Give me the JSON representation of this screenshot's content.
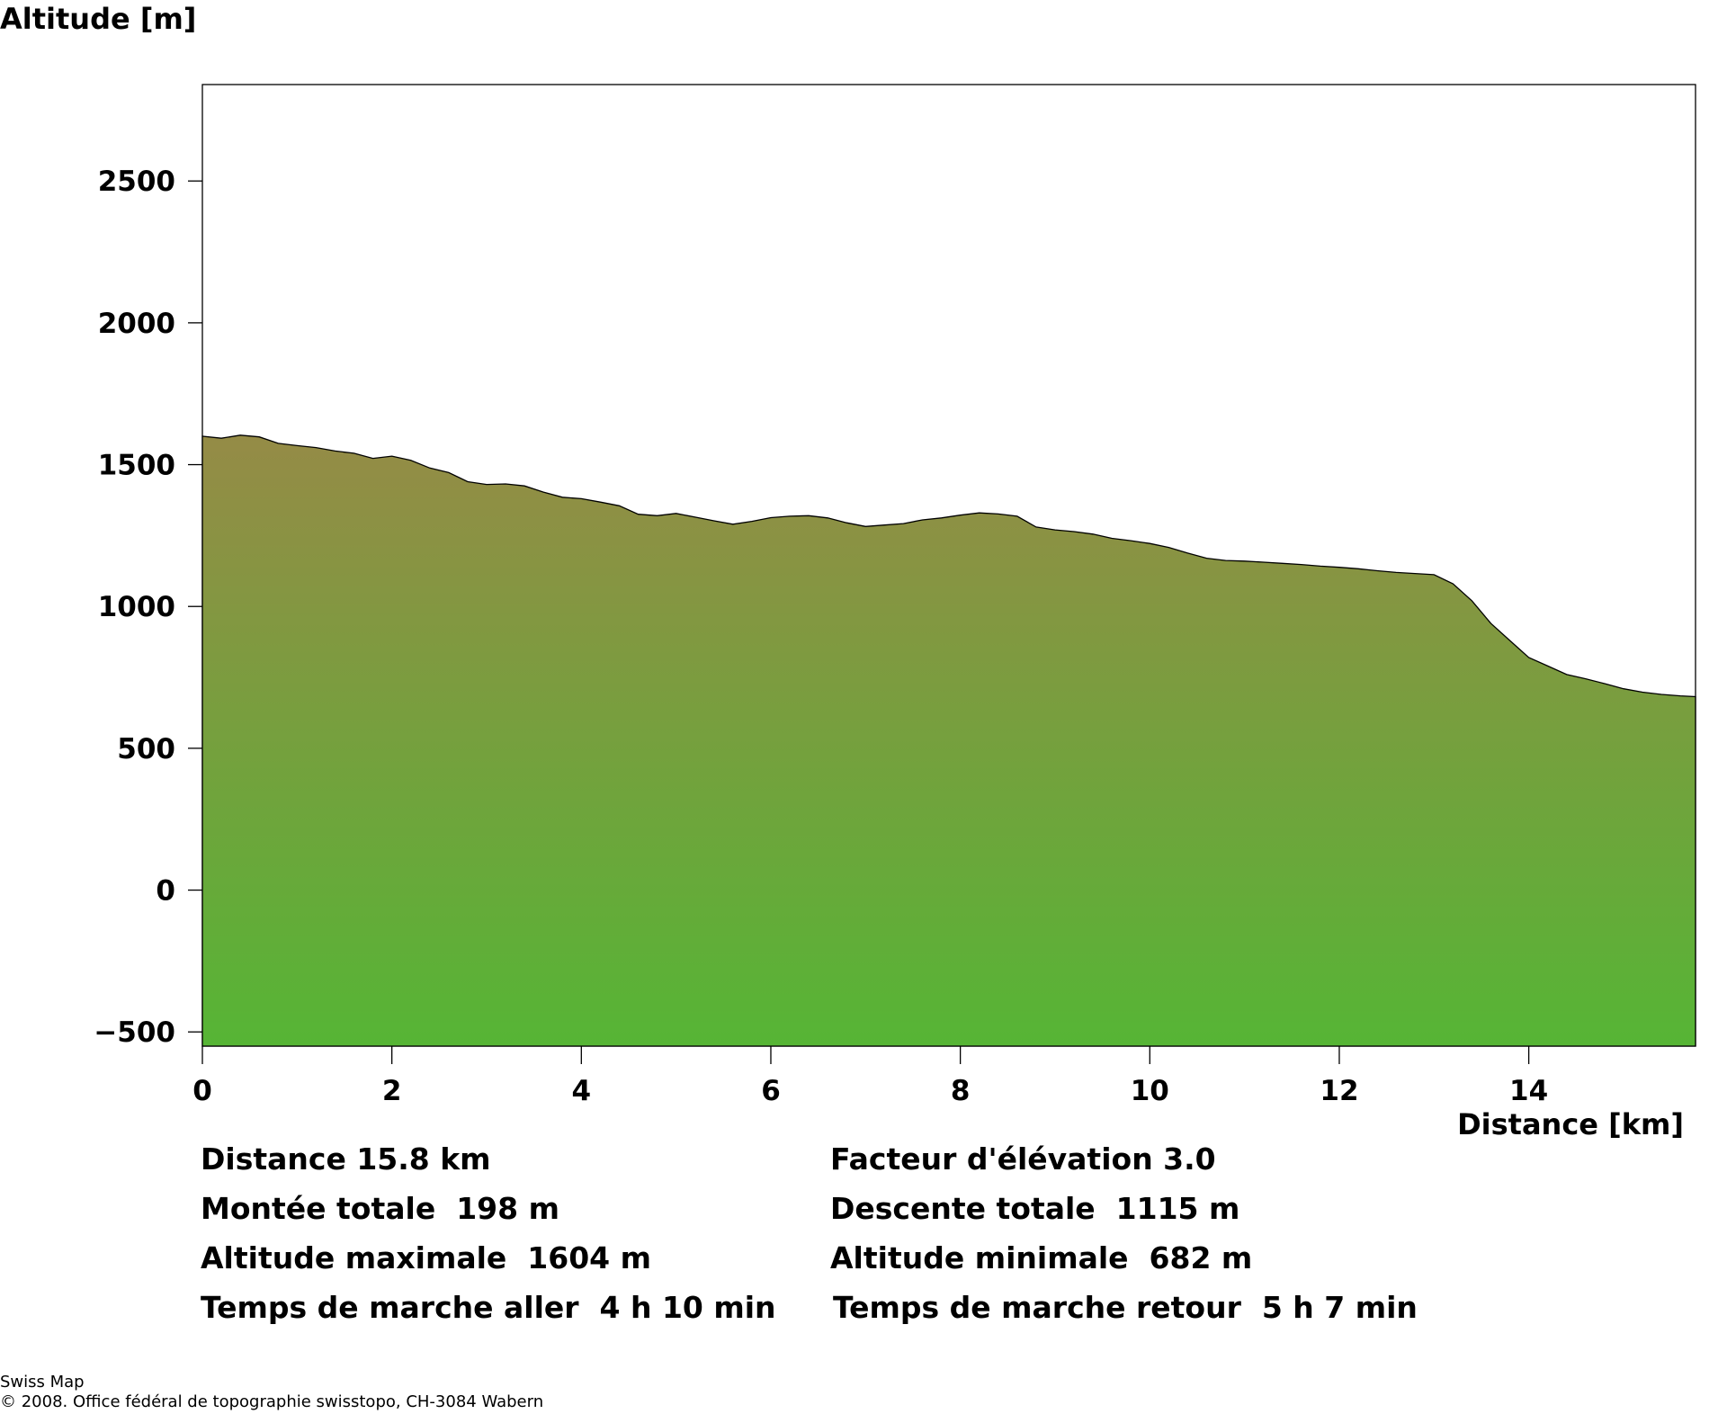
{
  "chart_data": {
    "type": "area",
    "ylabel": "Altitude [m]",
    "xlabel": "Distance [km]",
    "xlim": [
      0,
      15.76
    ],
    "ylim": [
      -550,
      2840
    ],
    "xticks": [
      0,
      2,
      4,
      6,
      8,
      10,
      12,
      14
    ],
    "yticks": [
      -500,
      0,
      500,
      1000,
      1500,
      2000,
      2500
    ],
    "grid": false,
    "fill_colors": {
      "top": "#958b46",
      "bottom": "#56b535"
    },
    "x": [
      0,
      0.2,
      0.4,
      0.6,
      0.8,
      1.0,
      1.2,
      1.4,
      1.6,
      1.8,
      2.0,
      2.2,
      2.4,
      2.6,
      2.8,
      3.0,
      3.2,
      3.4,
      3.6,
      3.8,
      4.0,
      4.2,
      4.4,
      4.6,
      4.8,
      5.0,
      5.2,
      5.4,
      5.6,
      5.8,
      6.0,
      6.2,
      6.4,
      6.6,
      6.8,
      7.0,
      7.2,
      7.4,
      7.6,
      7.8,
      8.0,
      8.2,
      8.4,
      8.6,
      8.8,
      9.0,
      9.2,
      9.4,
      9.6,
      9.8,
      10.0,
      10.2,
      10.4,
      10.6,
      10.8,
      11.0,
      11.2,
      11.4,
      11.6,
      11.8,
      12.0,
      12.2,
      12.4,
      12.6,
      12.8,
      13.0,
      13.2,
      13.4,
      13.6,
      13.8,
      14.0,
      14.2,
      14.4,
      14.6,
      14.8,
      15.0,
      15.2,
      15.4,
      15.6,
      15.76
    ],
    "y": [
      1600,
      1593,
      1604,
      1598,
      1575,
      1567,
      1560,
      1548,
      1540,
      1522,
      1530,
      1515,
      1488,
      1472,
      1440,
      1430,
      1432,
      1425,
      1403,
      1385,
      1380,
      1368,
      1355,
      1325,
      1320,
      1328,
      1315,
      1302,
      1290,
      1300,
      1313,
      1318,
      1320,
      1312,
      1295,
      1282,
      1287,
      1292,
      1305,
      1312,
      1322,
      1330,
      1326,
      1318,
      1280,
      1270,
      1264,
      1255,
      1240,
      1232,
      1222,
      1208,
      1188,
      1170,
      1162,
      1160,
      1156,
      1152,
      1148,
      1142,
      1138,
      1133,
      1126,
      1120,
      1116,
      1112,
      1080,
      1020,
      940,
      880,
      820,
      790,
      760,
      745,
      728,
      710,
      698,
      690,
      685,
      682
    ]
  },
  "stats": {
    "distance": "Distance 15.8 km",
    "ascent": "Montée totale  198 m",
    "max_altitude": "Altitude maximale  1604 m",
    "time_outbound": "Temps de marche aller  4 h 10 min",
    "elevation_factor": "Facteur d'élévation 3.0",
    "descent": "Descente totale  1115 m",
    "min_altitude": "Altitude minimale  682 m",
    "time_return": "Temps de marche retour  5 h 7 min"
  },
  "footer": {
    "line1": "Swiss Map",
    "line2": "© 2008. Office fédéral de topographie swisstopo, CH-3084 Wabern"
  }
}
